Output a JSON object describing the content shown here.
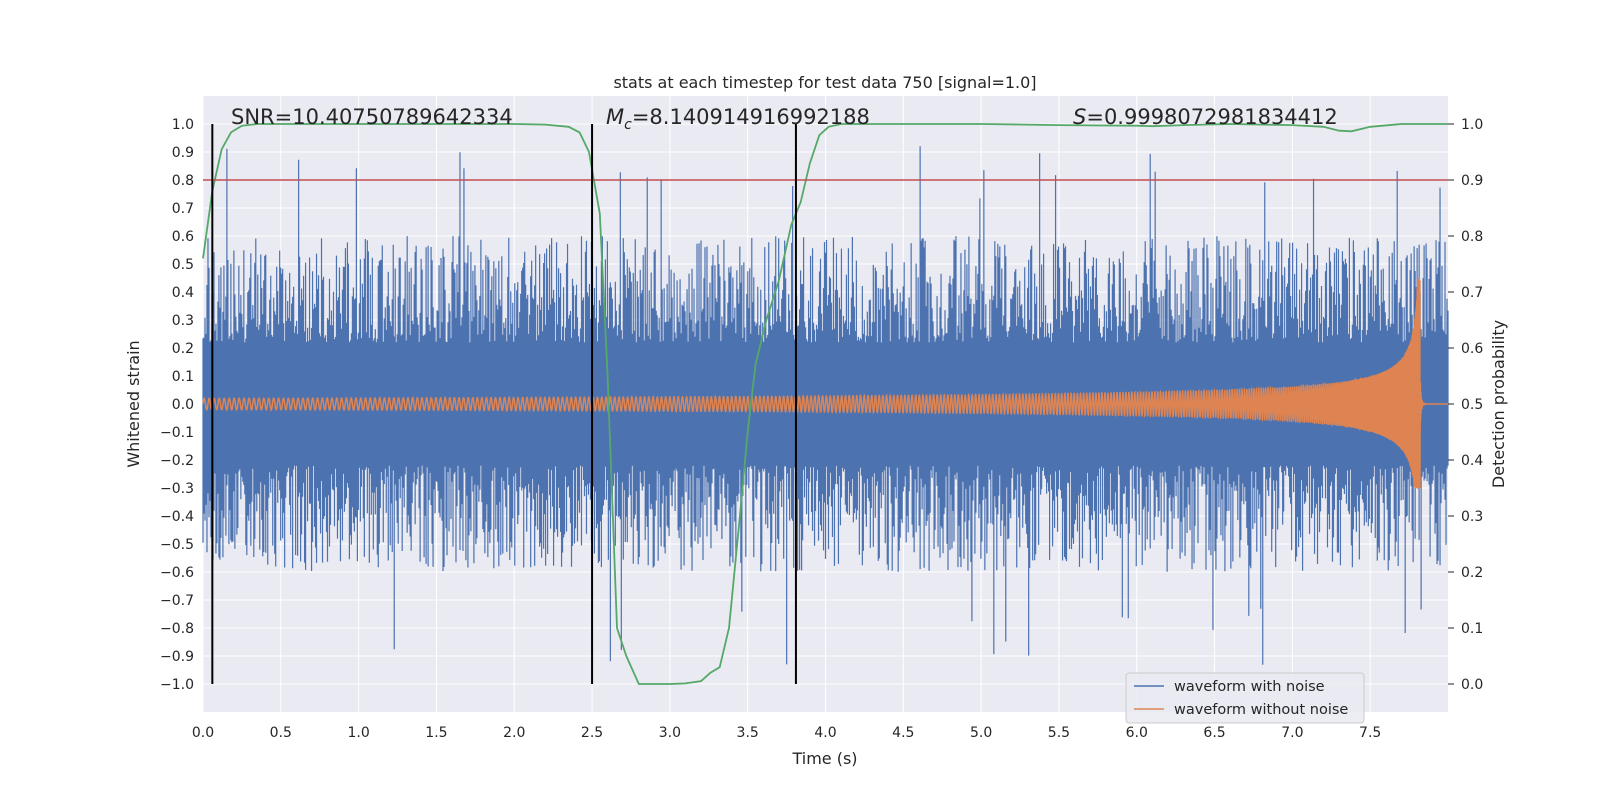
{
  "chart_data": {
    "type": "line",
    "title": "stats at each timestep for test data 750 [signal=1.0]",
    "xlabel": "Time (s)",
    "ylabel": "Whitened strain",
    "ylabel_right": "Detection probability",
    "xlim": [
      0.0,
      8.0
    ],
    "ylim": [
      -1.1,
      1.1
    ],
    "ylim_right": [
      -0.05,
      1.05
    ],
    "xticks": [
      "0.0",
      "0.5",
      "1.0",
      "1.5",
      "2.0",
      "2.5",
      "3.0",
      "3.5",
      "4.0",
      "4.5",
      "5.0",
      "5.5",
      "6.0",
      "6.5",
      "7.0",
      "7.5"
    ],
    "yticks": [
      "1.0",
      "0.9",
      "0.8",
      "0.7",
      "0.6",
      "0.5",
      "0.4",
      "0.3",
      "0.2",
      "0.1",
      "0.0",
      "−0.1",
      "−0.2",
      "−0.3",
      "−0.4",
      "−0.5",
      "−0.6",
      "−0.7",
      "−0.8",
      "−0.9",
      "−1.0"
    ],
    "yticks_right": [
      "1.0",
      "0.9",
      "0.8",
      "0.7",
      "0.6",
      "0.5",
      "0.4",
      "0.3",
      "0.2",
      "0.1",
      "0.0"
    ],
    "annotations": {
      "snr": "SNR=10.40750789642334",
      "mc_symbol": "M",
      "mc_sub": "c",
      "mc_value": "=8.140914916992188",
      "s_symbol": "S",
      "s_value": "=0.9998072981834412"
    },
    "vertical_lines_x": [
      0.06,
      2.5,
      3.81
    ],
    "threshold_y_right": 0.9,
    "grid": true,
    "legend_position": "lower-right",
    "series": [
      {
        "name": "waveform with noise",
        "color": "#4c72b0",
        "description": "dense noisy strain, envelope roughly ±0.5, spikes to ±0.95"
      },
      {
        "name": "waveform without noise",
        "color": "#dd8452",
        "chirp": {
          "base_amplitude": 0.02,
          "peak_amplitude": 0.45,
          "merger_time": 7.82,
          "min_trough": -0.3
        }
      },
      {
        "axis": "right",
        "color": "#55a868",
        "x": [
          0.0,
          0.06,
          0.12,
          0.18,
          0.25,
          0.35,
          0.5,
          1.0,
          1.5,
          2.0,
          2.2,
          2.35,
          2.42,
          2.48,
          2.55,
          2.6,
          2.66,
          2.72,
          2.8,
          2.9,
          3.0,
          3.1,
          3.2,
          3.26,
          3.32,
          3.38,
          3.45,
          3.5,
          3.55,
          3.62,
          3.7,
          3.78,
          3.84,
          3.9,
          3.96,
          4.02,
          4.1,
          4.2,
          4.4,
          5.0,
          5.5,
          6.0,
          6.1,
          6.3,
          6.6,
          7.0,
          7.2,
          7.3,
          7.38,
          7.5,
          7.7,
          8.0
        ],
        "y": [
          0.76,
          0.88,
          0.955,
          0.985,
          0.997,
          1.0,
          1.0,
          1.0,
          1.0,
          1.0,
          0.999,
          0.995,
          0.985,
          0.95,
          0.84,
          0.55,
          0.1,
          0.05,
          0.0,
          0.0,
          0.0,
          0.001,
          0.005,
          0.02,
          0.03,
          0.1,
          0.3,
          0.45,
          0.57,
          0.65,
          0.72,
          0.82,
          0.86,
          0.93,
          0.98,
          0.995,
          1.0,
          1.0,
          1.0,
          1.0,
          0.998,
          0.997,
          0.996,
          0.998,
          1.0,
          0.998,
          0.995,
          0.988,
          0.987,
          0.995,
          1.0,
          1.0
        ]
      }
    ]
  }
}
